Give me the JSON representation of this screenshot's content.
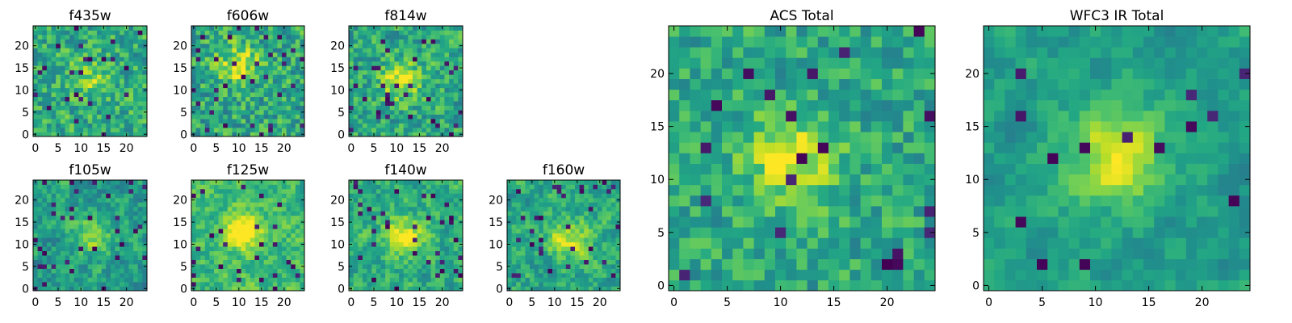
{
  "chart_data": [
    {
      "type": "heatmap",
      "title": "f435w",
      "xlabel": "",
      "ylabel": "",
      "rows": 25,
      "cols": 25,
      "xlim": [
        -0.5,
        24.5
      ],
      "ylim": [
        -0.5,
        24.5
      ],
      "xticks": [
        0,
        5,
        10,
        15,
        20
      ],
      "yticks": [
        0,
        5,
        10,
        15,
        20
      ],
      "colormap": "viridis",
      "seed": 11,
      "smooth": 0.15,
      "blob": {
        "x": 12,
        "y": 13,
        "amp": 0.2
      },
      "dark_fraction": 0.04,
      "base": 0.62,
      "noise": 0.22
    },
    {
      "type": "heatmap",
      "title": "f606w",
      "xlabel": "",
      "ylabel": "",
      "rows": 25,
      "cols": 25,
      "xlim": [
        -0.5,
        24.5
      ],
      "ylim": [
        -0.5,
        24.5
      ],
      "xticks": [
        0,
        5,
        10,
        15,
        20
      ],
      "yticks": [
        0,
        5,
        10,
        15,
        20
      ],
      "colormap": "viridis",
      "seed": 23,
      "smooth": 0.15,
      "blob": {
        "x": 10,
        "y": 16,
        "amp": 0.35
      },
      "dark_fraction": 0.05,
      "base": 0.6,
      "noise": 0.24
    },
    {
      "type": "heatmap",
      "title": "f814w",
      "xlabel": "",
      "ylabel": "",
      "rows": 25,
      "cols": 25,
      "xlim": [
        -0.5,
        24.5
      ],
      "ylim": [
        -0.5,
        24.5
      ],
      "xticks": [
        0,
        5,
        10,
        15,
        20
      ],
      "yticks": [
        0,
        5,
        10,
        15,
        20
      ],
      "colormap": "viridis",
      "seed": 37,
      "smooth": 0.2,
      "blob": {
        "x": 11,
        "y": 12,
        "amp": 0.35
      },
      "dark_fraction": 0.05,
      "base": 0.6,
      "noise": 0.22
    },
    {
      "type": "heatmap",
      "title": "f105w",
      "xlabel": "",
      "ylabel": "",
      "rows": 25,
      "cols": 25,
      "xlim": [
        -0.5,
        24.5
      ],
      "ylim": [
        -0.5,
        24.5
      ],
      "xticks": [
        0,
        5,
        10,
        15,
        20
      ],
      "yticks": [
        0,
        5,
        10,
        15,
        20
      ],
      "colormap": "viridis",
      "seed": 41,
      "smooth": 0.5,
      "blob": {
        "x": 13,
        "y": 12,
        "amp": 0.3
      },
      "dark_fraction": 0.07,
      "base": 0.55,
      "noise": 0.25
    },
    {
      "type": "heatmap",
      "title": "f125w",
      "xlabel": "",
      "ylabel": "",
      "rows": 25,
      "cols": 25,
      "xlim": [
        -0.5,
        24.5
      ],
      "ylim": [
        -0.5,
        24.5
      ],
      "xticks": [
        0,
        5,
        10,
        15,
        20
      ],
      "yticks": [
        0,
        5,
        10,
        15,
        20
      ],
      "colormap": "viridis",
      "seed": 53,
      "smooth": 0.5,
      "blob": {
        "x": 11,
        "y": 13,
        "amp": 0.4
      },
      "dark_fraction": 0.03,
      "base": 0.68,
      "noise": 0.22
    },
    {
      "type": "heatmap",
      "title": "f140w",
      "xlabel": "",
      "ylabel": "",
      "rows": 25,
      "cols": 25,
      "xlim": [
        -0.5,
        24.5
      ],
      "ylim": [
        -0.5,
        24.5
      ],
      "xticks": [
        0,
        5,
        10,
        15,
        20
      ],
      "yticks": [
        0,
        5,
        10,
        15,
        20
      ],
      "colormap": "viridis",
      "seed": 67,
      "smooth": 0.5,
      "blob": {
        "x": 12,
        "y": 12,
        "amp": 0.35
      },
      "dark_fraction": 0.05,
      "base": 0.62,
      "noise": 0.24
    },
    {
      "type": "heatmap",
      "title": "f160w",
      "xlabel": "",
      "ylabel": "",
      "rows": 25,
      "cols": 25,
      "xlim": [
        -0.5,
        24.5
      ],
      "ylim": [
        -0.5,
        24.5
      ],
      "xticks": [
        0,
        5,
        10,
        15,
        20
      ],
      "yticks": [
        0,
        5,
        10,
        15,
        20
      ],
      "colormap": "viridis",
      "seed": 79,
      "smooth": 0.5,
      "blob": {
        "x": 13,
        "y": 11,
        "amp": 0.35
      },
      "dark_fraction": 0.05,
      "base": 0.6,
      "noise": 0.24
    },
    {
      "type": "heatmap",
      "title": "ACS Total",
      "xlabel": "",
      "ylabel": "",
      "rows": 25,
      "cols": 25,
      "xlim": [
        -0.5,
        24.5
      ],
      "ylim": [
        -0.5,
        24.5
      ],
      "xticks": [
        0,
        5,
        10,
        15,
        20
      ],
      "yticks": [
        0,
        5,
        10,
        15,
        20
      ],
      "colormap": "viridis",
      "seed": 97,
      "smooth": 0.2,
      "blob": {
        "x": 11,
        "y": 12,
        "amp": 0.35
      },
      "dark_fraction": 0.035,
      "base": 0.6,
      "noise": 0.2
    },
    {
      "type": "heatmap",
      "title": "WFC3 IR Total",
      "xlabel": "",
      "ylabel": "",
      "rows": 25,
      "cols": 25,
      "xlim": [
        -0.5,
        24.5
      ],
      "ylim": [
        -0.5,
        24.5
      ],
      "xticks": [
        0,
        5,
        10,
        15,
        20
      ],
      "yticks": [
        0,
        5,
        10,
        15,
        20
      ],
      "colormap": "viridis",
      "seed": 113,
      "smooth": 0.65,
      "blob": {
        "x": 12,
        "y": 12,
        "amp": 0.45
      },
      "dark_fraction": 0.03,
      "base": 0.56,
      "noise": 0.2
    }
  ]
}
